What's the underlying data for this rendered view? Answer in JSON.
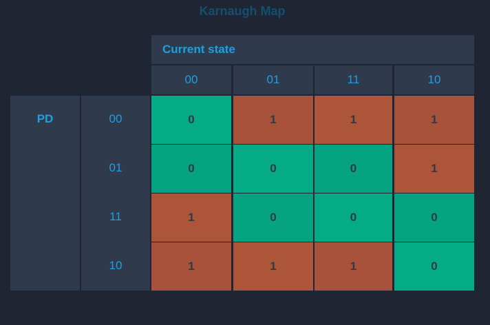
{
  "title": "Karnaugh Map",
  "column_group_label": "Current state",
  "row_group_label": "PD",
  "column_headers": [
    "00",
    "01",
    "11",
    "10"
  ],
  "row_headers": [
    "00",
    "01",
    "11",
    "10"
  ],
  "cells": [
    [
      "0",
      "1",
      "1",
      "1"
    ],
    [
      "0",
      "0",
      "0",
      "1"
    ],
    [
      "1",
      "0",
      "0",
      "0"
    ],
    [
      "1",
      "1",
      "1",
      "0"
    ]
  ],
  "colors": {
    "zero_primary": "#04ab86",
    "zero_alt": "#06a382",
    "one_primary": "#ad5538",
    "one_alt": "#a8523b"
  }
}
